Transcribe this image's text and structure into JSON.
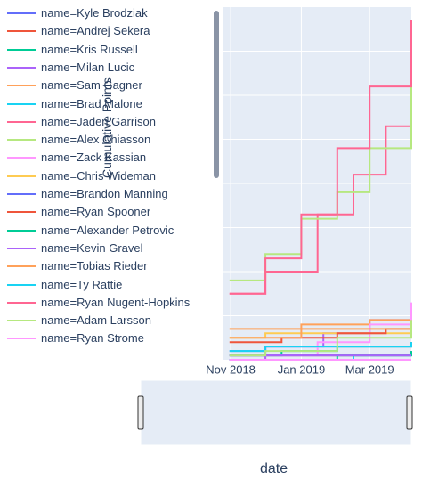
{
  "chart_data": {
    "type": "line",
    "ylabel": "Cumulative Points",
    "xlabel": "date",
    "x_ticks": [
      "Nov 2018",
      "Jan 2019",
      "Mar 2019"
    ],
    "x_range": [
      "2018-10-25",
      "2019-04-06"
    ],
    "y_range": [
      0,
      80
    ],
    "grid": true,
    "legend_position": "left",
    "range_slider": true,
    "series": [
      {
        "name": "name=Kyle Brodziak",
        "color": "#636efa",
        "points": [
          [
            "2018-10-31",
            2
          ],
          [
            "2018-12-01",
            3
          ],
          [
            "2019-01-15",
            3
          ],
          [
            "2019-04-06",
            4
          ]
        ]
      },
      {
        "name": "name=Andrej Sekera",
        "color": "#EF553B",
        "points": [
          [
            "2018-10-31",
            1
          ],
          [
            "2019-02-01",
            1
          ],
          [
            "2019-04-06",
            1
          ]
        ]
      },
      {
        "name": "name=Kris Russell",
        "color": "#00cc96",
        "points": [
          [
            "2018-10-31",
            1
          ],
          [
            "2018-12-15",
            2
          ],
          [
            "2019-02-01",
            3
          ],
          [
            "2019-04-06",
            4
          ]
        ]
      },
      {
        "name": "name=Milan Lucic",
        "color": "#ab63fa",
        "points": [
          [
            "2018-10-31",
            1
          ],
          [
            "2018-12-01",
            3
          ],
          [
            "2019-01-20",
            6
          ],
          [
            "2019-03-01",
            9
          ],
          [
            "2019-04-06",
            12
          ]
        ]
      },
      {
        "name": "name=Sam Gagner",
        "color": "#FFA15A",
        "points": [
          [
            "2018-10-31",
            7
          ],
          [
            "2019-01-01",
            8
          ],
          [
            "2019-03-01",
            9
          ],
          [
            "2019-04-06",
            10
          ]
        ]
      },
      {
        "name": "name=Brad Malone",
        "color": "#19d3f3",
        "points": [
          [
            "2018-10-31",
            0
          ],
          [
            "2019-01-01",
            0
          ],
          [
            "2019-02-15",
            1
          ],
          [
            "2019-04-06",
            1
          ]
        ]
      },
      {
        "name": "name=Jaden Garrison",
        "color": "#FF6692",
        "points": [
          [
            "2018-10-31",
            15
          ],
          [
            "2018-12-01",
            20
          ],
          [
            "2019-01-15",
            33
          ],
          [
            "2019-02-15",
            42
          ],
          [
            "2019-03-15",
            53
          ],
          [
            "2019-04-06",
            61
          ]
        ]
      },
      {
        "name": "name=Alex Chiasson",
        "color": "#B6E880",
        "points": [
          [
            "2018-10-31",
            18
          ],
          [
            "2018-12-01",
            24
          ],
          [
            "2019-01-01",
            32
          ],
          [
            "2019-02-01",
            38
          ],
          [
            "2019-03-01",
            48
          ],
          [
            "2019-04-06",
            63
          ]
        ]
      },
      {
        "name": "name=Zack Kassian",
        "color": "#FF97FF",
        "points": [
          [
            "2018-10-31",
            0
          ],
          [
            "2018-12-01",
            1
          ],
          [
            "2019-01-15",
            4
          ],
          [
            "2019-03-01",
            8
          ],
          [
            "2019-04-06",
            13
          ]
        ]
      },
      {
        "name": "name=Chris Wideman",
        "color": "#FECB52",
        "points": [
          [
            "2018-10-31",
            5
          ],
          [
            "2018-12-01",
            6
          ],
          [
            "2019-04-06",
            7
          ]
        ]
      },
      {
        "name": "name=Brandon Manning",
        "color": "#636efa",
        "points": [
          [
            "2018-10-31",
            1
          ],
          [
            "2019-01-01",
            1
          ],
          [
            "2019-04-06",
            2
          ]
        ]
      },
      {
        "name": "name=Ryan Spooner",
        "color": "#EF553B",
        "points": [
          [
            "2018-10-31",
            4
          ],
          [
            "2018-12-15",
            5
          ],
          [
            "2019-02-01",
            6
          ],
          [
            "2019-03-15",
            7
          ],
          [
            "2019-04-06",
            8
          ]
        ]
      },
      {
        "name": "name=Alexander Petrovic",
        "color": "#00cc96",
        "points": [
          [
            "2018-10-31",
            0
          ],
          [
            "2019-02-01",
            1
          ],
          [
            "2019-04-06",
            2
          ]
        ]
      },
      {
        "name": "name=Kevin Gravel",
        "color": "#ab63fa",
        "points": [
          [
            "2018-10-31",
            0
          ],
          [
            "2018-12-01",
            1
          ],
          [
            "2019-04-06",
            1
          ]
        ]
      },
      {
        "name": "name=Tobias Rieder",
        "color": "#FFA15A",
        "points": [
          [
            "2018-10-31",
            5
          ],
          [
            "2019-01-01",
            7
          ],
          [
            "2019-04-06",
            9
          ]
        ]
      },
      {
        "name": "name=Ty Rattie",
        "color": "#19d3f3",
        "points": [
          [
            "2018-10-31",
            2
          ],
          [
            "2018-12-01",
            3
          ],
          [
            "2019-04-06",
            4
          ]
        ]
      },
      {
        "name": "name=Ryan Nugent-Hopkins",
        "color": "#FF6692",
        "points": [
          [
            "2018-10-31",
            15
          ],
          [
            "2018-12-01",
            23
          ],
          [
            "2019-01-01",
            33
          ],
          [
            "2019-02-01",
            48
          ],
          [
            "2019-03-01",
            62
          ],
          [
            "2019-04-06",
            77
          ]
        ]
      },
      {
        "name": "name=Adam Larsson",
        "color": "#B6E880",
        "points": [
          [
            "2018-10-31",
            1
          ],
          [
            "2018-12-01",
            2
          ],
          [
            "2019-02-01",
            5
          ],
          [
            "2019-04-06",
            9
          ]
        ]
      },
      {
        "name": "name=Ryan Strome",
        "color": "#FF97FF",
        "points": [
          [
            "2018-10-31",
            0
          ],
          [
            "2019-04-06",
            0
          ]
        ]
      }
    ]
  }
}
